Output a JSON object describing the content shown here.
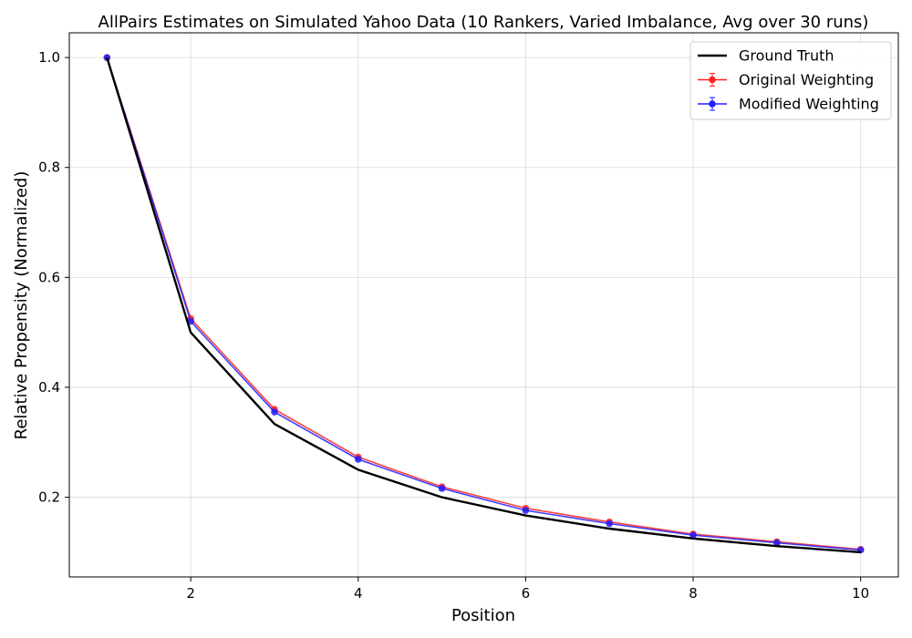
{
  "chart_data": {
    "type": "line",
    "title": "AllPairs Estimates on Simulated Yahoo Data (10 Rankers, Varied Imbalance, Avg over 30 runs)",
    "xlabel": "Position",
    "ylabel": "Relative Propensity (Normalized)",
    "x": [
      1,
      2,
      3,
      4,
      5,
      6,
      7,
      8,
      9,
      10
    ],
    "xlim": [
      0.55,
      10.45
    ],
    "ylim": [
      0.055,
      1.045
    ],
    "xticks": [
      2,
      4,
      6,
      8,
      10
    ],
    "yticks": [
      0.2,
      0.4,
      0.6,
      0.8,
      1.0
    ],
    "xtick_labels": [
      "2",
      "4",
      "6",
      "8",
      "10"
    ],
    "ytick_labels": [
      "0.2",
      "0.4",
      "0.6",
      "0.8",
      "1.0"
    ],
    "grid": true,
    "legend_position": "top-right",
    "series": [
      {
        "name": "Ground Truth",
        "color": "#000000",
        "markers": false,
        "values": [
          1.0,
          0.5,
          0.3333,
          0.25,
          0.2,
          0.1667,
          0.1429,
          0.125,
          0.1111,
          0.1
        ]
      },
      {
        "name": "Original Weighting",
        "color": "#ff2020",
        "markers": true,
        "values": [
          1.0,
          0.525,
          0.36,
          0.273,
          0.219,
          0.18,
          0.155,
          0.133,
          0.119,
          0.105
        ]
      },
      {
        "name": "Modified Weighting",
        "color": "#2020ff",
        "markers": true,
        "values": [
          1.0,
          0.52,
          0.355,
          0.269,
          0.216,
          0.176,
          0.152,
          0.131,
          0.117,
          0.104
        ]
      }
    ]
  }
}
